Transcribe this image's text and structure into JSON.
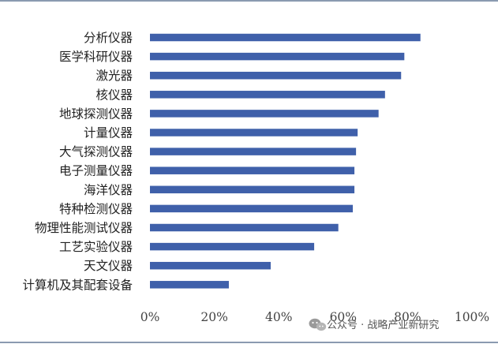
{
  "colors": {
    "bar": "#3F60AA",
    "frame_line": "#8A9AB0",
    "axis_text": "#444444"
  },
  "watermark": {
    "icon": "wechat-icon",
    "text": "公众号 · 战略产业新研究"
  },
  "chart_data": {
    "type": "bar",
    "orientation": "horizontal",
    "title": "",
    "xlabel": "",
    "ylabel": "",
    "categories": [
      "分析仪器",
      "医学科研仪器",
      "激光器",
      "核仪器",
      "地球探测仪器",
      "计量仪器",
      "大气探测仪器",
      "电子测量仪器",
      "海洋仪器",
      "特种检测仪器",
      "物理性能测试仪器",
      "工艺实验仪器",
      "天文仪器",
      "计算机及其配套设备"
    ],
    "values": [
      84,
      79,
      78,
      73,
      71,
      64.5,
      64,
      63.5,
      63.5,
      63,
      58.5,
      51,
      37.5,
      24.5
    ],
    "unit": "%",
    "xlim": [
      0,
      100
    ],
    "x_ticks": [
      "0%",
      "20%",
      "40%",
      "60%",
      "80%",
      "100%"
    ],
    "grid": false,
    "legend": "none"
  }
}
